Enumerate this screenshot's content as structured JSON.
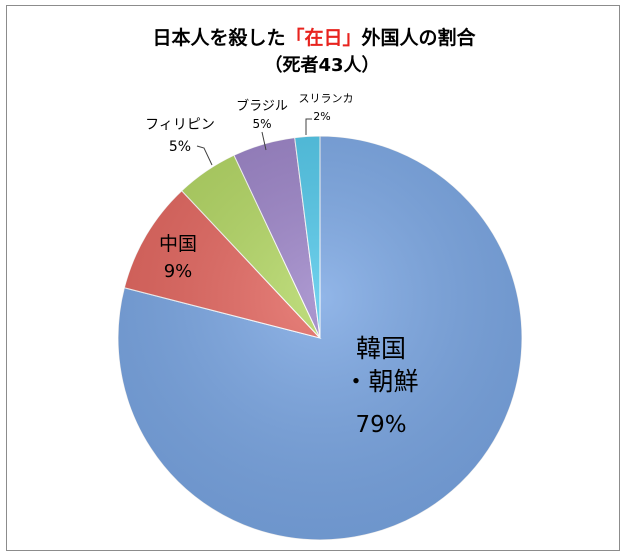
{
  "chart_data": {
    "type": "pie",
    "title": {
      "part1": "日本人を殺した",
      "highlight": "「在日」",
      "part2": "外国人の割合"
    },
    "subtitle": "（死者43人）",
    "slices": [
      {
        "label": "韓国・朝鮮",
        "label_lines": [
          "韓国",
          "・朝鮮"
        ],
        "value": 79,
        "value_label": "79%",
        "color": "#7aa6e3"
      },
      {
        "label": "中国",
        "label_lines": [
          "中国"
        ],
        "value": 9,
        "value_label": "9%",
        "color": "#e3665f"
      },
      {
        "label": "フィリピン",
        "label_lines": [
          "フィリピン"
        ],
        "value": 5,
        "value_label": "5%",
        "color": "#b2d662"
      },
      {
        "label": "ブラジル",
        "label_lines": [
          "ブラジル"
        ],
        "value": 5,
        "value_label": "5%",
        "color": "#9a82c6"
      },
      {
        "label": "スリランカ",
        "label_lines": [
          "スリランカ"
        ],
        "value": 2,
        "value_label": "2%",
        "color": "#4fc6e8"
      }
    ],
    "colors": {
      "title_highlight": "#e8231e"
    }
  }
}
